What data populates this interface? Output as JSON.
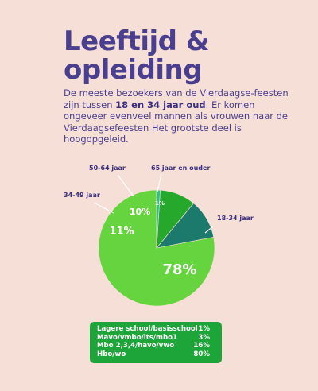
{
  "title_line1": "Leeftijd &",
  "title_line2": "opleiding",
  "intro": {
    "part1": "De meeste bezoekers van de Vierdaagse-feesten zijn tussen ",
    "bold": "18 en 34 jaar oud",
    "part2": ". Er komen ongeveer evenveel mannen als vrouwen naar de Vierdaagsefeesten Het grootste deel is hoogopgeleid."
  },
  "chart_data": {
    "type": "pie",
    "slices": [
      {
        "label": "18-34 jaar",
        "value": 78,
        "value_label": "78%",
        "color": "#66d43e"
      },
      {
        "label": "34-49 jaar",
        "value": 11,
        "value_label": "11%",
        "color": "#1c7a6c"
      },
      {
        "label": "50-64 jaar",
        "value": 10,
        "value_label": "10%",
        "color": "#26a82c"
      },
      {
        "label": "65 jaar en ouder",
        "value": 1,
        "value_label": "1%",
        "color": "#2fbf8e"
      }
    ]
  },
  "education_table": [
    {
      "label": "Lagere school/basisschool",
      "value": "1%"
    },
    {
      "label": "Mavo/vmbo/lts/mbo1",
      "value": "3%"
    },
    {
      "label": "Mbo 2,3,4/havo/vwo",
      "value": "16%"
    },
    {
      "label": "Hbo/wo",
      "value": "80%"
    }
  ],
  "colors": {
    "background": "#f6dfd6",
    "heading": "#4a3f8f",
    "legend_box": "#1ea53a"
  }
}
